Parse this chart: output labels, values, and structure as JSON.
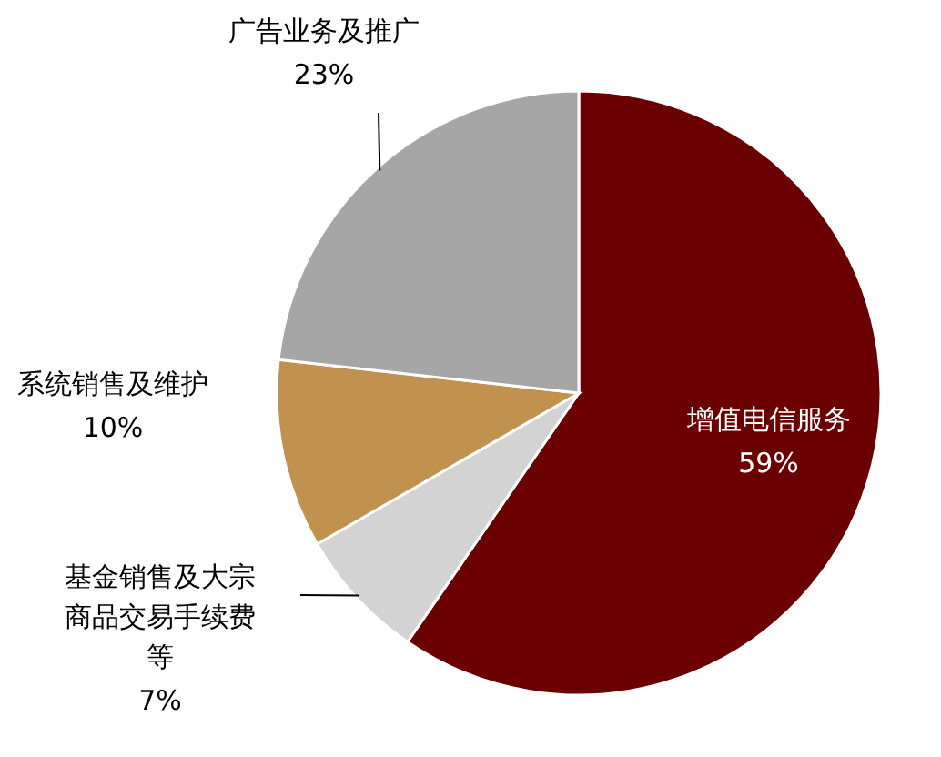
{
  "chart_data": {
    "type": "pie",
    "categories": [
      "增值电信服务",
      "基金销售及大宗商品交易手续费等",
      "系统销售及维护",
      "广告业务及推广"
    ],
    "values": [
      59,
      7,
      10,
      23
    ],
    "value_labels": [
      "59%",
      "7%",
      "10%",
      "23%"
    ],
    "colors": [
      "#6b0000",
      "#d3d3d3",
      "#c0914f",
      "#a6a6a6"
    ]
  }
}
